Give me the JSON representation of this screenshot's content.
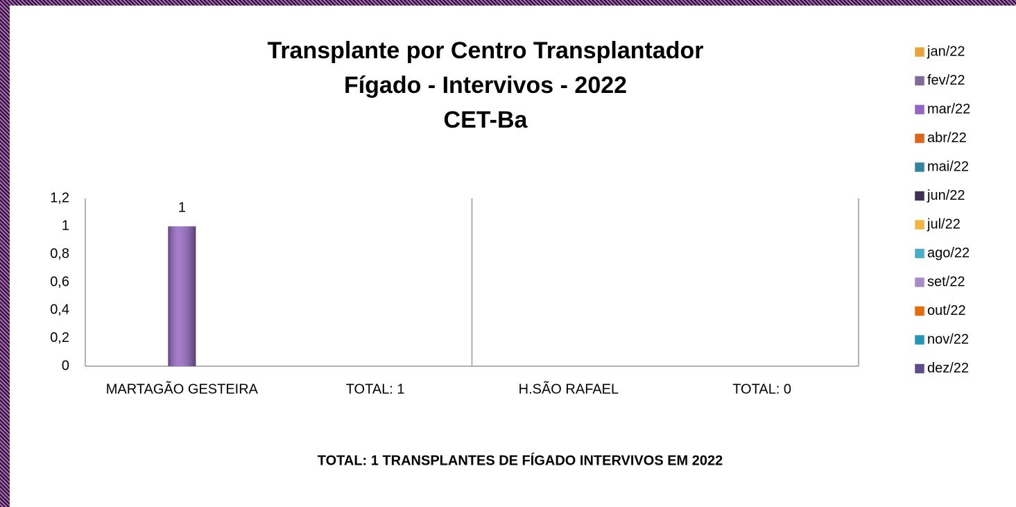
{
  "chart_data": {
    "type": "bar",
    "title": "Transplante por Centro Transplantador",
    "subtitle": [
      "Fígado - Intervivos - 2022",
      "CET-Ba"
    ],
    "annotation": "TOTAL:  1 TRANSPLANTES DE FÍGADO INTERVIVOS EM 2022",
    "categories": [
      "MARTAGÃO GESTEIRA",
      "TOTAL: 1",
      "H.SÃO RAFAEL",
      "TOTAL: 0"
    ],
    "series": [
      {
        "name": "jan/22",
        "color": "#e8a33d",
        "values": [
          null,
          null,
          null,
          null
        ]
      },
      {
        "name": "fev/22",
        "color": "#7f6a9a",
        "values": [
          null,
          null,
          null,
          null
        ]
      },
      {
        "name": "mar/22",
        "color": "#9466c4",
        "values": [
          1,
          null,
          null,
          null
        ]
      },
      {
        "name": "abr/22",
        "color": "#d9671b",
        "values": [
          null,
          null,
          null,
          null
        ]
      },
      {
        "name": "mai/22",
        "color": "#31859c",
        "values": [
          null,
          null,
          null,
          null
        ]
      },
      {
        "name": "jun/22",
        "color": "#403152",
        "values": [
          null,
          null,
          null,
          null
        ]
      },
      {
        "name": "jul/22",
        "color": "#f2b544",
        "values": [
          null,
          null,
          null,
          null
        ]
      },
      {
        "name": "ago/22",
        "color": "#4bacc6",
        "values": [
          null,
          null,
          null,
          null
        ]
      },
      {
        "name": "set/22",
        "color": "#a58bc8",
        "values": [
          null,
          null,
          null,
          null
        ]
      },
      {
        "name": "out/22",
        "color": "#e36c09",
        "values": [
          null,
          null,
          null,
          null
        ]
      },
      {
        "name": "nov/22",
        "color": "#2795b5",
        "values": [
          null,
          null,
          null,
          null
        ]
      },
      {
        "name": "dez/22",
        "color": "#5f4a8a",
        "values": [
          null,
          null,
          null,
          null
        ]
      }
    ],
    "ylim": [
      0,
      1.2
    ],
    "yticks": [
      0,
      {
        "value": 0.2,
        "label": "0,2"
      },
      {
        "value": 0.4,
        "label": "0,4"
      },
      {
        "value": 0.6,
        "label": "0,6"
      },
      {
        "value": 0.8,
        "label": "0,8"
      },
      1,
      {
        "value": 1.2,
        "label": "1,2"
      }
    ],
    "legend": "right"
  }
}
